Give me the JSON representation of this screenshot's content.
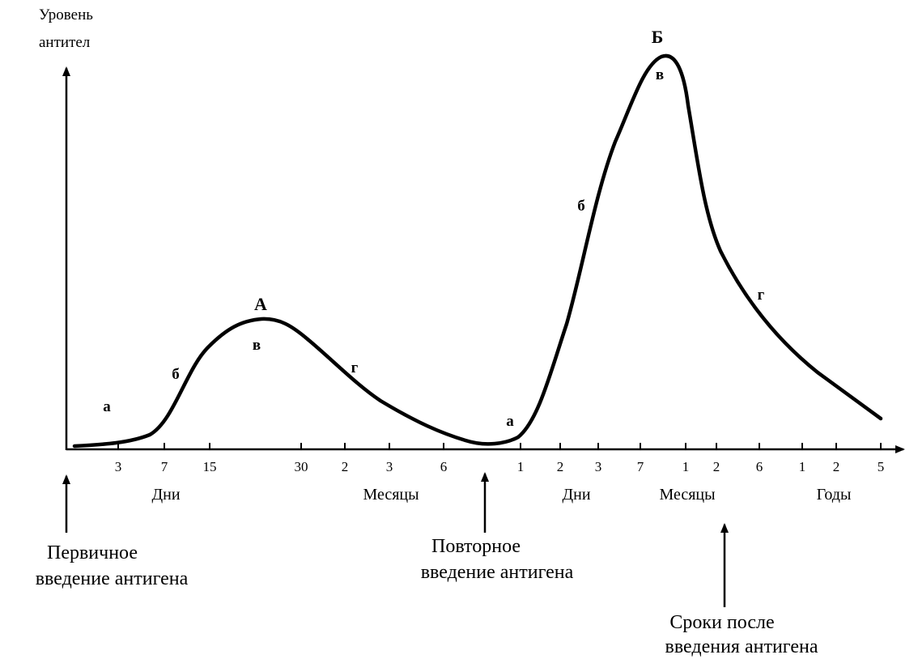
{
  "diagram": {
    "y_axis_title_lines": [
      "Уровень",
      "антител"
    ],
    "tick_labels": [
      "3",
      "7",
      "15",
      "30",
      "2",
      "3",
      "6",
      "1",
      "2",
      "3",
      "7",
      "1",
      "2",
      "6",
      "1",
      "2",
      "5"
    ],
    "unit_labels": [
      "Дни",
      "Месяцы",
      "Дни",
      "Месяцы",
      "Годы"
    ],
    "phase_labels": {
      "primary": [
        "а",
        "б",
        "в",
        "г"
      ],
      "secondary": [
        "а",
        "б",
        "в",
        "г"
      ]
    },
    "peak_labels": [
      "А",
      "Б"
    ],
    "annotations": {
      "primary_injection": [
        "Первичное",
        "введение антигена"
      ],
      "repeat_injection": [
        "Повторное",
        "введение антигена"
      ],
      "time_after": [
        "Сроки после",
        "введения антигена"
      ]
    },
    "colors": {
      "ink": "#000000",
      "background": "#ffffff"
    }
  }
}
